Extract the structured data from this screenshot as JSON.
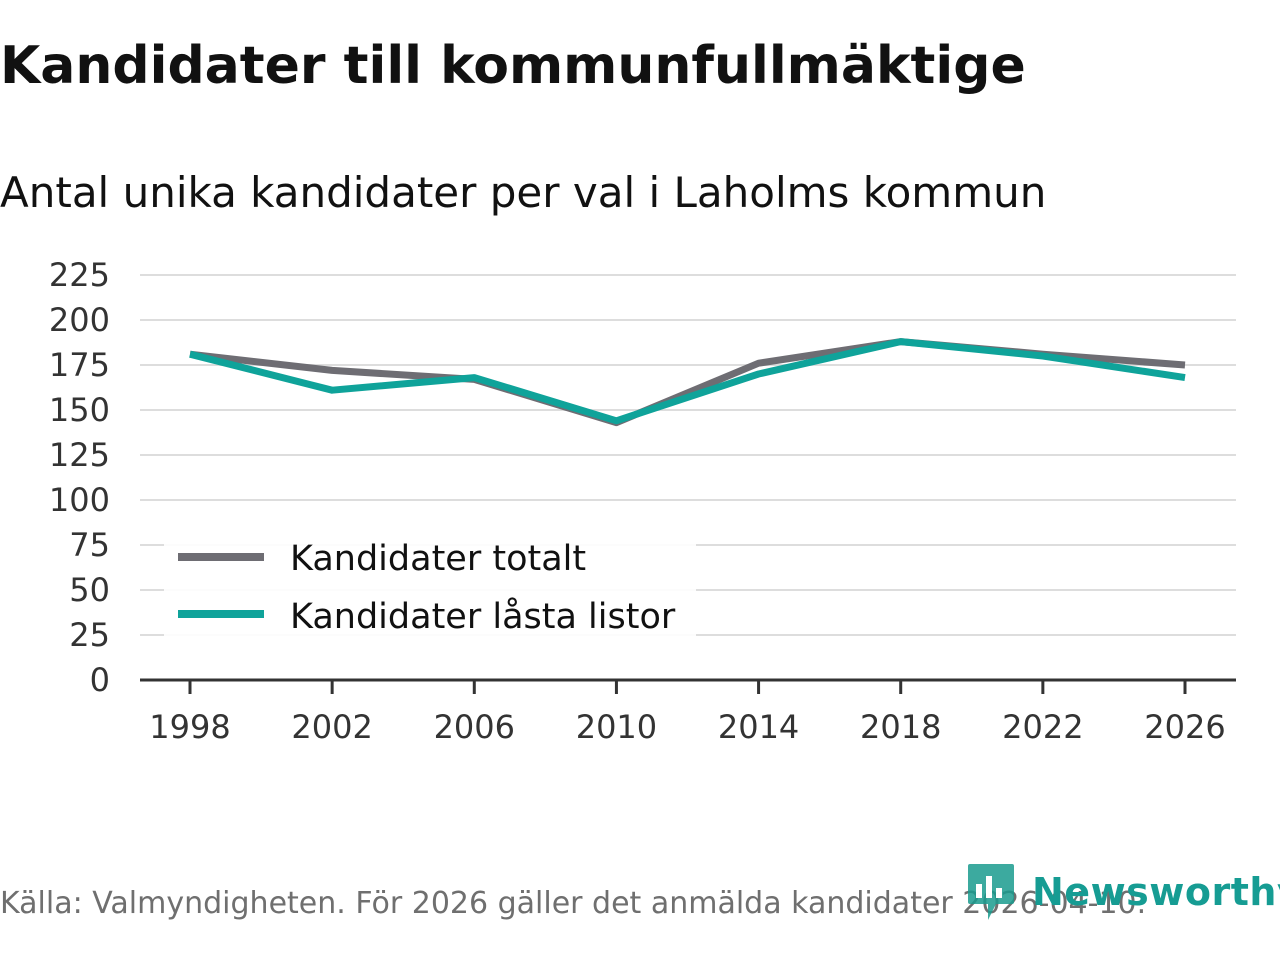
{
  "header": {
    "title": "Kandidater till kommunfullmäktige",
    "subtitle": "Antal unika kandidater per val i Laholms kommun"
  },
  "colors": {
    "series_total": "#6e6d73",
    "series_locked": "#0fa39a",
    "grid": "#dddddd",
    "axis": "#333333",
    "brand": "#169c93"
  },
  "chart_data": {
    "type": "line",
    "title": "Kandidater till kommunfullmäktige",
    "subtitle": "Antal unika kandidater per val i Laholms kommun",
    "xlabel": "",
    "ylabel": "",
    "x": [
      1998,
      2002,
      2006,
      2010,
      2014,
      2018,
      2022,
      2026
    ],
    "x_tick_labels": [
      "1998",
      "2002",
      "2006",
      "2010",
      "2014",
      "2018",
      "2022",
      "2026"
    ],
    "y_ticks": [
      0,
      25,
      50,
      75,
      100,
      125,
      150,
      175,
      200,
      225
    ],
    "ylim": [
      0,
      225
    ],
    "grid": true,
    "legend_position": "bottom-left",
    "series": [
      {
        "name": "Kandidater totalt",
        "color": "#6e6d73",
        "values": [
          181,
          172,
          167,
          143,
          176,
          188,
          181,
          175
        ]
      },
      {
        "name": "Kandidater låsta listor",
        "color": "#0fa39a",
        "values": [
          181,
          161,
          168,
          144,
          170,
          188,
          180,
          168
        ]
      }
    ]
  },
  "footer": {
    "source": "Källa: Valmyndigheten. För 2026 gäller det anmälda kandidater 2026-04-10.",
    "brand_name": "Newsworthy",
    "brand_logo_icon": "bar-chart-pin-icon"
  }
}
